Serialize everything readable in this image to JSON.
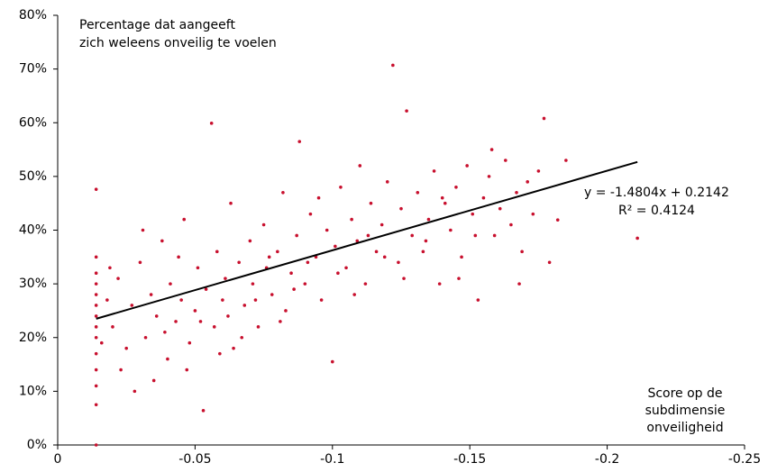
{
  "chart_data": {
    "type": "scatter",
    "annotations": {
      "y_label": [
        "Percentage dat aangeeft",
        "zich weleens onveilig te voelen"
      ],
      "x_label": [
        "Score op de",
        "subdimensie",
        "onveiligheid"
      ],
      "equation": "y = -1.4804x + 0.2142",
      "r2": "R² = 0.4124"
    },
    "color": "#c8102e",
    "x": [
      -0.014,
      -0.014,
      -0.014,
      -0.014,
      -0.014,
      -0.014,
      -0.014,
      -0.014,
      -0.014,
      -0.014,
      -0.014,
      -0.014,
      -0.014,
      -0.014,
      -0.018,
      -0.02,
      -0.022,
      -0.025,
      -0.027,
      -0.03,
      -0.032,
      -0.034,
      -0.036,
      -0.038,
      -0.04,
      -0.041,
      -0.043,
      -0.045,
      -0.046,
      -0.048,
      -0.05,
      -0.051,
      -0.053,
      -0.054,
      -0.056,
      -0.057,
      -0.058,
      -0.06,
      -0.061,
      -0.063,
      -0.064,
      -0.066,
      -0.068,
      -0.07,
      -0.071,
      -0.073,
      -0.075,
      -0.076,
      -0.078,
      -0.08,
      -0.082,
      -0.083,
      -0.085,
      -0.087,
      -0.088,
      -0.09,
      -0.092,
      -0.094,
      -0.096,
      -0.098,
      -0.1,
      -0.101,
      -0.103,
      -0.105,
      -0.107,
      -0.109,
      -0.11,
      -0.112,
      -0.114,
      -0.116,
      -0.118,
      -0.12,
      -0.122,
      -0.124,
      -0.125,
      -0.127,
      -0.129,
      -0.131,
      -0.133,
      -0.135,
      -0.137,
      -0.139,
      -0.141,
      -0.143,
      -0.145,
      -0.147,
      -0.149,
      -0.151,
      -0.153,
      -0.155,
      -0.157,
      -0.159,
      -0.161,
      -0.163,
      -0.165,
      -0.167,
      -0.169,
      -0.171,
      -0.173,
      -0.175,
      -0.177,
      -0.179,
      -0.182,
      -0.185,
      -0.211,
      -0.016,
      -0.019,
      -0.023,
      -0.028,
      -0.031,
      -0.035,
      -0.039,
      -0.044,
      -0.047,
      -0.052,
      -0.059,
      -0.062,
      -0.067,
      -0.072,
      -0.077,
      -0.081,
      -0.086,
      -0.091,
      -0.095,
      -0.102,
      -0.108,
      -0.113,
      -0.119,
      -0.126,
      -0.134,
      -0.14,
      -0.146,
      -0.152,
      -0.158,
      -0.168
    ],
    "values": [
      11,
      14,
      17,
      20,
      22,
      24,
      26,
      28,
      30,
      32,
      35,
      47.6,
      0,
      7.5,
      27,
      22,
      31,
      18,
      26,
      34,
      20,
      28,
      24,
      38,
      16,
      30,
      23,
      27,
      42,
      19,
      25,
      33,
      6.4,
      29,
      59.9,
      22,
      36,
      27,
      31,
      45,
      18,
      34,
      26,
      38,
      30,
      22,
      41,
      33,
      28,
      36,
      47,
      25,
      32,
      39,
      56.5,
      30,
      43,
      35,
      27,
      40,
      15.5,
      37,
      48,
      33,
      42,
      38,
      52,
      30,
      45,
      36,
      41,
      49,
      70.7,
      34,
      44,
      62.2,
      39,
      47,
      36,
      42,
      51,
      30,
      45,
      40,
      48,
      35,
      52,
      43,
      27,
      46,
      50,
      39,
      44,
      53,
      41,
      47,
      36,
      49,
      43,
      51,
      60.8,
      34,
      41.9,
      53,
      38.5,
      19,
      33,
      14,
      10,
      40,
      12,
      21,
      35,
      14,
      23,
      17,
      24,
      20,
      27,
      35,
      23,
      29,
      34,
      46,
      32,
      28,
      39,
      35,
      31,
      38,
      46,
      31,
      39,
      55,
      30
    ],
    "trendline": {
      "x": [
        -0.014,
        -0.211
      ],
      "y": [
        23.5,
        52.7
      ],
      "color": "#000000"
    },
    "xlim": [
      0,
      -0.25
    ],
    "xticks": [
      0,
      -0.05,
      -0.1,
      -0.15,
      -0.2,
      -0.25
    ],
    "ylim": [
      0,
      80
    ],
    "yticks": [
      {
        "value": 0,
        "label": "0%"
      },
      {
        "value": 10,
        "label": "10%"
      },
      {
        "value": 20,
        "label": "20%"
      },
      {
        "value": 30,
        "label": "30%"
      },
      {
        "value": 40,
        "label": "40%"
      },
      {
        "value": 50,
        "label": "50%"
      },
      {
        "value": 60,
        "label": "60%"
      },
      {
        "value": 70,
        "label": "70%"
      },
      {
        "value": 80,
        "label": "80%"
      }
    ]
  }
}
